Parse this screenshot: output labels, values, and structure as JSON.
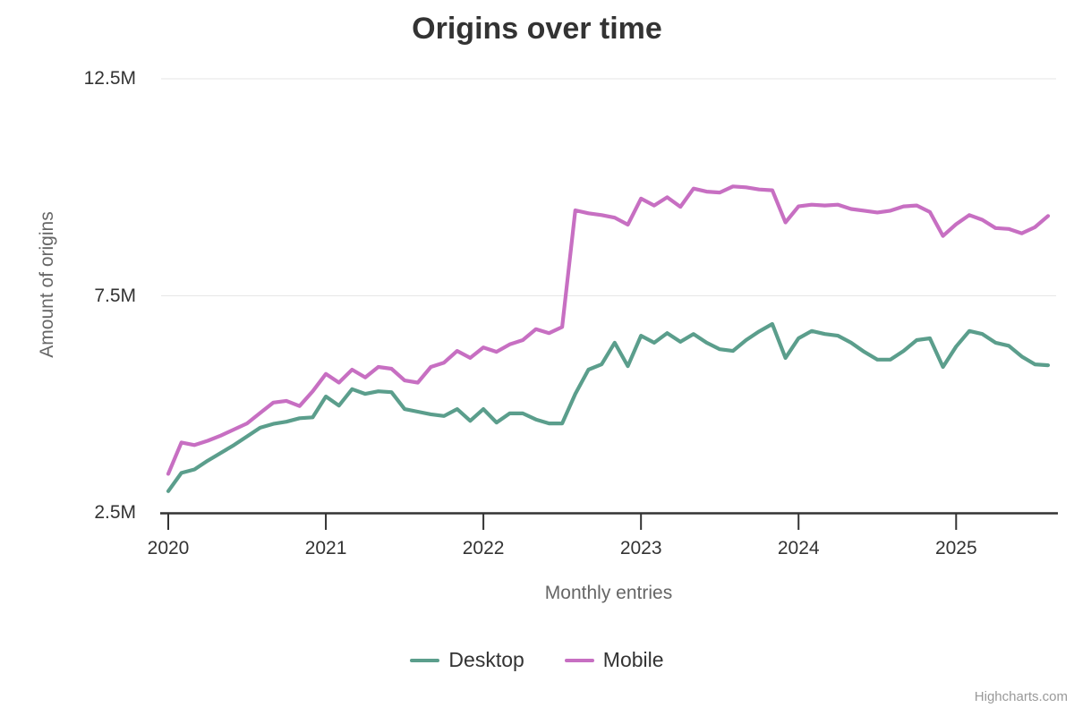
{
  "chart_data": {
    "type": "line",
    "title": "Origins over time",
    "xlabel": "Monthly entries",
    "ylabel": "Amount of origins",
    "x_tick_labels": [
      "2020",
      "2021",
      "2022",
      "2023",
      "2024",
      "2025"
    ],
    "y_tick_labels": [
      "2.5M",
      "7.5M",
      "12.5M"
    ],
    "y_tick_values": [
      2.5,
      7.5,
      12.5
    ],
    "ylim": [
      2.5,
      12.5
    ],
    "y_unit": "M",
    "x_start": "2020-01",
    "x_end": "2025-08",
    "x_interval": "1 month",
    "n_points": 68,
    "grid": true,
    "legend_position": "bottom",
    "series": [
      {
        "name": "Desktop",
        "color": "#5B9E8C",
        "values": [
          3.0,
          3.42,
          3.5,
          3.7,
          3.88,
          4.06,
          4.26,
          4.46,
          4.55,
          4.6,
          4.68,
          4.7,
          5.18,
          4.97,
          5.35,
          5.24,
          5.3,
          5.28,
          4.89,
          4.83,
          4.77,
          4.73,
          4.89,
          4.62,
          4.89,
          4.58,
          4.79,
          4.79,
          4.65,
          4.56,
          4.56,
          5.24,
          5.8,
          5.92,
          6.42,
          5.88,
          6.58,
          6.42,
          6.64,
          6.44,
          6.62,
          6.42,
          6.27,
          6.23,
          6.48,
          6.68,
          6.85,
          6.07,
          6.52,
          6.69,
          6.62,
          6.58,
          6.42,
          6.21,
          6.03,
          6.03,
          6.23,
          6.48,
          6.52,
          5.86,
          6.33,
          6.69,
          6.62,
          6.42,
          6.35,
          6.1,
          5.92,
          5.9
        ]
      },
      {
        "name": "Mobile",
        "color": "#C76FC2",
        "values": [
          3.4,
          4.12,
          4.06,
          4.16,
          4.28,
          4.42,
          4.56,
          4.8,
          5.04,
          5.08,
          4.96,
          5.3,
          5.7,
          5.5,
          5.8,
          5.62,
          5.86,
          5.82,
          5.55,
          5.5,
          5.86,
          5.96,
          6.23,
          6.07,
          6.31,
          6.21,
          6.38,
          6.48,
          6.73,
          6.64,
          6.78,
          9.47,
          9.4,
          9.36,
          9.3,
          9.14,
          9.74,
          9.58,
          9.77,
          9.55,
          9.97,
          9.9,
          9.88,
          10.02,
          10.0,
          9.95,
          9.93,
          9.19,
          9.56,
          9.6,
          9.58,
          9.6,
          9.5,
          9.46,
          9.42,
          9.46,
          9.56,
          9.58,
          9.43,
          8.88,
          9.15,
          9.36,
          9.25,
          9.06,
          9.04,
          8.94,
          9.08,
          9.34
        ]
      }
    ]
  },
  "credits": {
    "text": "Highcharts.com"
  },
  "colors": {
    "background": "#FFFFFF",
    "title": "#333333",
    "tick_label": "#333333",
    "axis_title": "#666666",
    "grid_line": "#E6E6E6",
    "axis_line": "#333333",
    "credit": "#999999"
  }
}
